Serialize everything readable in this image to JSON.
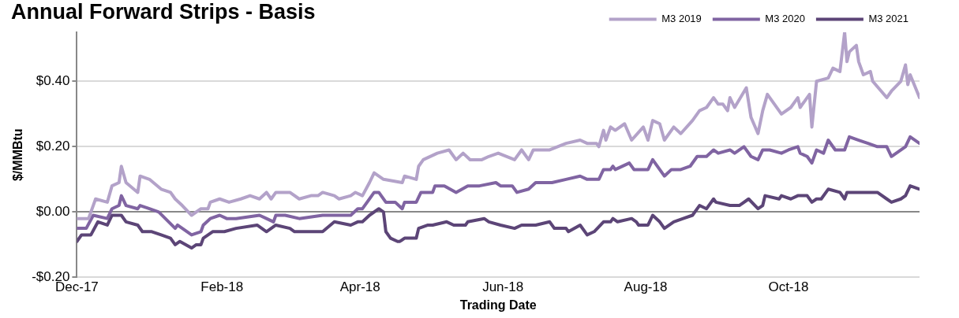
{
  "chart_data": {
    "type": "line",
    "title": "Annual Forward Strips - Basis",
    "xlabel": "Trading Date",
    "ylabel": "$/MMBtu",
    "xlim": [
      "2017-12-01",
      "2018-11-26"
    ],
    "xticks": [
      {
        "value": "2017-12-01",
        "label": "Dec-17"
      },
      {
        "value": "2018-02-01",
        "label": "Feb-18"
      },
      {
        "value": "2018-04-01",
        "label": "Apr-18"
      },
      {
        "value": "2018-06-01",
        "label": "Jun-18"
      },
      {
        "value": "2018-08-01",
        "label": "Aug-18"
      },
      {
        "value": "2018-10-01",
        "label": "Oct-18"
      }
    ],
    "ylim": [
      -0.2,
      0.55
    ],
    "yticks": [
      {
        "value": -0.2,
        "label": "-$0.20"
      },
      {
        "value": 0,
        "label": "$0.00"
      },
      {
        "value": 0.2,
        "label": "$0.20"
      },
      {
        "value": 0.4,
        "label": "$0.40"
      }
    ],
    "grid": "y",
    "legend": "top right",
    "marker": "none",
    "line_style": "solid",
    "series": [
      {
        "name": "M3 2019",
        "color": "#b3a2c9",
        "x": [
          "2017-12-01",
          "2017-12-06",
          "2017-12-09",
          "2017-12-14",
          "2017-12-16",
          "2017-12-19",
          "2017-12-20",
          "2017-12-22",
          "2017-12-27",
          "2017-12-28",
          "2018-01-01",
          "2018-01-06",
          "2018-01-10",
          "2018-01-12",
          "2018-01-15",
          "2018-01-19",
          "2018-01-23",
          "2018-01-26",
          "2018-01-27",
          "2018-01-31",
          "2018-02-04",
          "2018-02-09",
          "2018-02-13",
          "2018-02-17",
          "2018-02-20",
          "2018-02-22",
          "2018-02-24",
          "2018-02-28",
          "2018-03-02",
          "2018-03-06",
          "2018-03-11",
          "2018-03-14",
          "2018-03-16",
          "2018-03-21",
          "2018-03-23",
          "2018-03-28",
          "2018-03-30",
          "2018-04-02",
          "2018-04-05",
          "2018-04-07",
          "2018-04-11",
          "2018-04-19",
          "2018-04-20",
          "2018-04-25",
          "2018-04-26",
          "2018-04-28",
          "2018-05-04",
          "2018-05-09",
          "2018-05-12",
          "2018-05-15",
          "2018-05-18",
          "2018-05-23",
          "2018-05-26",
          "2018-05-30",
          "2018-06-06",
          "2018-06-09",
          "2018-06-12",
          "2018-06-14",
          "2018-06-21",
          "2018-06-28",
          "2018-07-04",
          "2018-07-07",
          "2018-07-11",
          "2018-07-12",
          "2018-07-14",
          "2018-07-15",
          "2018-07-17",
          "2018-07-19",
          "2018-07-23",
          "2018-07-26",
          "2018-07-31",
          "2018-08-02",
          "2018-08-04",
          "2018-08-07",
          "2018-08-09",
          "2018-08-13",
          "2018-08-16",
          "2018-08-21",
          "2018-08-24",
          "2018-08-27",
          "2018-08-30",
          "2018-09-01",
          "2018-09-03",
          "2018-09-05",
          "2018-09-06",
          "2018-09-08",
          "2018-09-13",
          "2018-09-15",
          "2018-09-18",
          "2018-09-20",
          "2018-09-22",
          "2018-09-25",
          "2018-09-28",
          "2018-10-02",
          "2018-10-05",
          "2018-10-06",
          "2018-10-10",
          "2018-10-11",
          "2018-10-13",
          "2018-10-18",
          "2018-10-20",
          "2018-10-23",
          "2018-10-25",
          "2018-10-26",
          "2018-10-27",
          "2018-10-30",
          "2018-10-31",
          "2018-11-02",
          "2018-11-05",
          "2018-11-06",
          "2018-11-12",
          "2018-11-14",
          "2018-11-18",
          "2018-11-20",
          "2018-11-21",
          "2018-11-22",
          "2018-11-26"
        ],
        "values": [
          -0.02,
          -0.02,
          0.04,
          0.03,
          0.08,
          0.09,
          0.14,
          0.09,
          0.06,
          0.11,
          0.1,
          0.07,
          0.06,
          0.04,
          0.02,
          -0.01,
          0.01,
          0.01,
          0.03,
          0.04,
          0.03,
          0.04,
          0.05,
          0.04,
          0.06,
          0.04,
          0.06,
          0.06,
          0.06,
          0.04,
          0.05,
          0.05,
          0.06,
          0.05,
          0.04,
          0.05,
          0.06,
          0.05,
          0.09,
          0.12,
          0.1,
          0.09,
          0.11,
          0.1,
          0.14,
          0.16,
          0.18,
          0.19,
          0.16,
          0.18,
          0.16,
          0.16,
          0.17,
          0.18,
          0.16,
          0.19,
          0.16,
          0.19,
          0.19,
          0.21,
          0.22,
          0.21,
          0.21,
          0.2,
          0.25,
          0.22,
          0.26,
          0.25,
          0.27,
          0.22,
          0.26,
          0.22,
          0.28,
          0.27,
          0.22,
          0.26,
          0.24,
          0.28,
          0.31,
          0.32,
          0.35,
          0.33,
          0.33,
          0.31,
          0.35,
          0.32,
          0.38,
          0.29,
          0.24,
          0.31,
          0.36,
          0.33,
          0.3,
          0.32,
          0.35,
          0.32,
          0.36,
          0.26,
          0.4,
          0.41,
          0.44,
          0.43,
          0.55,
          0.46,
          0.49,
          0.51,
          0.46,
          0.42,
          0.43,
          0.4,
          0.35,
          0.37,
          0.4,
          0.45,
          0.39,
          0.42,
          0.35
        ]
      },
      {
        "name": "M3 2020",
        "color": "#8064a2",
        "x": [
          "2017-12-01",
          "2017-12-05",
          "2017-12-08",
          "2017-12-14",
          "2017-12-16",
          "2017-12-19",
          "2017-12-20",
          "2017-12-22",
          "2017-12-27",
          "2017-12-28",
          "2018-01-01",
          "2018-01-05",
          "2018-01-12",
          "2018-01-13",
          "2018-01-19",
          "2018-01-23",
          "2018-01-24",
          "2018-01-27",
          "2018-01-31",
          "2018-02-03",
          "2018-02-07",
          "2018-02-17",
          "2018-02-20",
          "2018-02-23",
          "2018-02-24",
          "2018-02-28",
          "2018-03-06",
          "2018-03-16",
          "2018-03-28",
          "2018-03-31",
          "2018-04-02",
          "2018-04-07",
          "2018-04-09",
          "2018-04-12",
          "2018-04-16",
          "2018-04-19",
          "2018-04-20",
          "2018-04-25",
          "2018-04-27",
          "2018-05-02",
          "2018-05-03",
          "2018-05-07",
          "2018-05-12",
          "2018-05-17",
          "2018-05-22",
          "2018-05-29",
          "2018-05-31",
          "2018-06-05",
          "2018-06-07",
          "2018-06-12",
          "2018-06-15",
          "2018-06-22",
          "2018-06-28",
          "2018-07-04",
          "2018-07-07",
          "2018-07-12",
          "2018-07-14",
          "2018-07-17",
          "2018-07-18",
          "2018-07-19",
          "2018-07-25",
          "2018-07-27",
          "2018-08-02",
          "2018-08-04",
          "2018-08-07",
          "2018-08-09",
          "2018-08-12",
          "2018-08-16",
          "2018-08-20",
          "2018-08-23",
          "2018-08-27",
          "2018-08-30",
          "2018-09-01",
          "2018-09-06",
          "2018-09-08",
          "2018-09-12",
          "2018-09-15",
          "2018-09-18",
          "2018-09-20",
          "2018-09-23",
          "2018-09-28",
          "2018-10-01",
          "2018-10-05",
          "2018-10-06",
          "2018-10-09",
          "2018-10-11",
          "2018-10-13",
          "2018-10-16",
          "2018-10-18",
          "2018-10-21",
          "2018-10-25",
          "2018-10-27",
          "2018-10-31",
          "2018-11-04",
          "2018-11-08",
          "2018-11-12",
          "2018-11-14",
          "2018-11-20",
          "2018-11-22",
          "2018-11-26"
        ],
        "values": [
          -0.05,
          -0.05,
          -0.01,
          -0.02,
          0.01,
          0.02,
          0.05,
          0.02,
          0.01,
          0.02,
          0.01,
          0,
          -0.05,
          -0.04,
          -0.07,
          -0.06,
          -0.04,
          -0.02,
          -0.01,
          -0.02,
          -0.02,
          -0.01,
          -0.02,
          -0.03,
          -0.01,
          -0.01,
          -0.02,
          -0.01,
          -0.01,
          0.01,
          0.01,
          0.06,
          0.06,
          0.03,
          0.03,
          0.01,
          0.03,
          0.03,
          0.06,
          0.06,
          0.08,
          0.08,
          0.06,
          0.08,
          0.08,
          0.09,
          0.08,
          0.08,
          0.06,
          0.07,
          0.09,
          0.09,
          0.1,
          0.11,
          0.1,
          0.1,
          0.13,
          0.13,
          0.14,
          0.13,
          0.15,
          0.13,
          0.13,
          0.16,
          0.13,
          0.11,
          0.13,
          0.13,
          0.14,
          0.17,
          0.17,
          0.19,
          0.18,
          0.19,
          0.18,
          0.2,
          0.17,
          0.16,
          0.19,
          0.19,
          0.18,
          0.19,
          0.2,
          0.18,
          0.17,
          0.15,
          0.19,
          0.18,
          0.22,
          0.19,
          0.19,
          0.23,
          0.22,
          0.21,
          0.2,
          0.2,
          0.17,
          0.2,
          0.23,
          0.21
        ]
      },
      {
        "name": "M3 2021",
        "color": "#5c4577",
        "x": [
          "2017-12-01",
          "2017-12-03",
          "2017-12-07",
          "2017-12-10",
          "2017-12-14",
          "2017-12-16",
          "2017-12-20",
          "2017-12-22",
          "2017-12-27",
          "2017-12-29",
          "2018-01-02",
          "2018-01-06",
          "2018-01-10",
          "2018-01-12",
          "2018-01-14",
          "2018-01-19",
          "2018-01-21",
          "2018-01-23",
          "2018-01-24",
          "2018-01-28",
          "2018-02-02",
          "2018-02-07",
          "2018-02-16",
          "2018-02-20",
          "2018-02-24",
          "2018-03-02",
          "2018-03-04",
          "2018-03-12",
          "2018-03-16",
          "2018-03-21",
          "2018-03-28",
          "2018-03-31",
          "2018-04-02",
          "2018-04-05",
          "2018-04-09",
          "2018-04-11",
          "2018-04-12",
          "2018-04-14",
          "2018-04-17",
          "2018-04-18",
          "2018-04-20",
          "2018-04-25",
          "2018-04-26",
          "2018-04-30",
          "2018-05-02",
          "2018-05-08",
          "2018-05-11",
          "2018-05-16",
          "2018-05-17",
          "2018-05-24",
          "2018-05-26",
          "2018-05-31",
          "2018-06-06",
          "2018-06-09",
          "2018-06-15",
          "2018-06-21",
          "2018-06-23",
          "2018-06-28",
          "2018-06-29",
          "2018-07-04",
          "2018-07-07",
          "2018-07-10",
          "2018-07-14",
          "2018-07-17",
          "2018-07-18",
          "2018-07-20",
          "2018-07-26",
          "2018-07-28",
          "2018-07-29",
          "2018-08-02",
          "2018-08-04",
          "2018-08-07",
          "2018-08-09",
          "2018-08-13",
          "2018-08-17",
          "2018-08-21",
          "2018-08-24",
          "2018-08-27",
          "2018-08-30",
          "2018-08-31",
          "2018-09-06",
          "2018-09-10",
          "2018-09-14",
          "2018-09-18",
          "2018-09-20",
          "2018-09-21",
          "2018-09-27",
          "2018-09-28",
          "2018-10-02",
          "2018-10-05",
          "2018-10-09",
          "2018-10-11",
          "2018-10-13",
          "2018-10-15",
          "2018-10-18",
          "2018-10-23",
          "2018-10-25",
          "2018-10-26",
          "2018-11-02",
          "2018-11-08",
          "2018-11-12",
          "2018-11-14",
          "2018-11-18",
          "2018-11-20",
          "2018-11-22",
          "2018-11-26"
        ],
        "values": [
          -0.09,
          -0.07,
          -0.07,
          -0.03,
          -0.04,
          -0.01,
          -0.01,
          -0.03,
          -0.04,
          -0.06,
          -0.06,
          -0.07,
          -0.08,
          -0.1,
          -0.09,
          -0.11,
          -0.1,
          -0.1,
          -0.08,
          -0.06,
          -0.06,
          -0.05,
          -0.04,
          -0.06,
          -0.04,
          -0.05,
          -0.06,
          -0.06,
          -0.06,
          -0.03,
          -0.04,
          -0.03,
          -0.03,
          -0.01,
          0.01,
          0,
          -0.06,
          -0.08,
          -0.09,
          -0.09,
          -0.08,
          -0.08,
          -0.05,
          -0.04,
          -0.04,
          -0.03,
          -0.04,
          -0.04,
          -0.03,
          -0.02,
          -0.03,
          -0.04,
          -0.05,
          -0.04,
          -0.04,
          -0.03,
          -0.05,
          -0.05,
          -0.06,
          -0.04,
          -0.07,
          -0.06,
          -0.03,
          -0.03,
          -0.02,
          -0.03,
          -0.02,
          -0.03,
          -0.04,
          -0.04,
          -0.01,
          -0.03,
          -0.05,
          -0.03,
          -0.02,
          -0.01,
          0.02,
          0.01,
          0.04,
          0.03,
          0.02,
          0.02,
          0.04,
          0.01,
          0.02,
          0.05,
          0.04,
          0.05,
          0.04,
          0.05,
          0.05,
          0.03,
          0.04,
          0.04,
          0.07,
          0.06,
          0.04,
          0.06,
          0.06,
          0.06,
          0.04,
          0.03,
          0.04,
          0.05,
          0.08,
          0.07
        ]
      }
    ]
  }
}
